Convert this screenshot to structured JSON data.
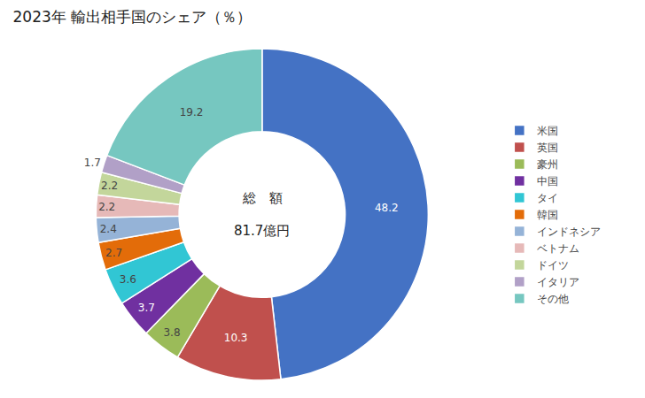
{
  "chart_data": {
    "type": "pie",
    "title": "2023年 輸出相手国のシェア（％）",
    "categories": [
      "米国",
      "英国",
      "豪州",
      "中国",
      "タイ",
      "韓国",
      "インドネシア",
      "ベトナム",
      "ドイツ",
      "イタリア",
      "その他"
    ],
    "values": [
      48.2,
      10.3,
      3.8,
      3.7,
      3.6,
      2.7,
      2.4,
      2.2,
      2.2,
      1.7,
      19.2
    ],
    "colors": [
      "#4472C4",
      "#C0504D",
      "#9BBB59",
      "#7030A0",
      "#31C6D4",
      "#E36C09",
      "#95B3D7",
      "#E6B9B8",
      "#C3D69B",
      "#B1A0C7",
      "#76C7C0"
    ],
    "annotations": [
      "総　額",
      "81.7億円"
    ],
    "data_labels": true,
    "legend": "right"
  }
}
